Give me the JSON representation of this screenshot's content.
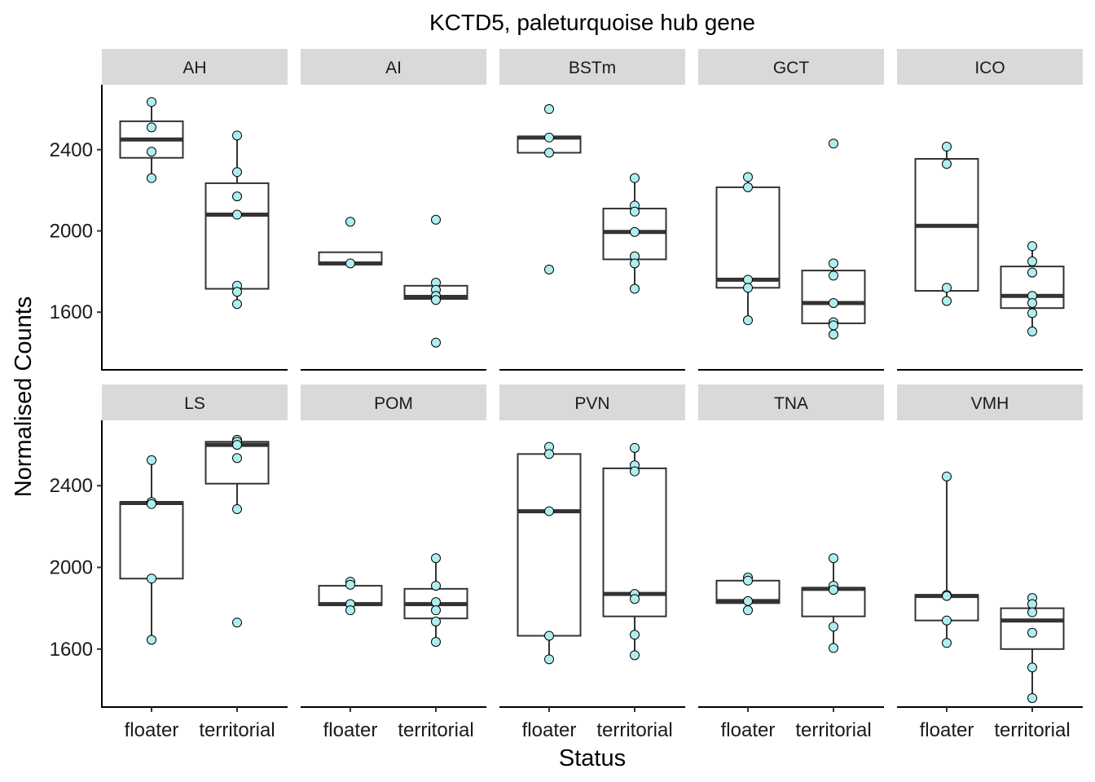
{
  "chart_data": {
    "type": "boxplot",
    "title": "KCTD5, paleturquoise hub gene",
    "xlabel": "Status",
    "ylabel": "Normalised Counts",
    "categories": [
      "floater",
      "territorial"
    ],
    "y_ticks": [
      1600,
      2000,
      2400
    ],
    "ylim": [
      1320,
      2720
    ],
    "point_color": "#AFEEEE",
    "facets": [
      {
        "label": "AH",
        "groups": [
          {
            "box": {
              "q1": 2360,
              "median": 2450,
              "q3": 2540
            },
            "whisker": [
              2260,
              2635
            ],
            "points": [
              2635,
              2510,
              2390,
              2260
            ]
          },
          {
            "box": {
              "q1": 1715,
              "median": 2080,
              "q3": 2235
            },
            "whisker": [
              1640,
              2470
            ],
            "points": [
              2470,
              2290,
              2170,
              2080,
              1730,
              1700,
              1640
            ]
          }
        ]
      },
      {
        "label": "AI",
        "groups": [
          {
            "box": {
              "q1": 1835,
              "median": 1840,
              "q3": 1895
            },
            "whisker": null,
            "points": [
              2045,
              1840
            ]
          },
          {
            "box": {
              "q1": 1665,
              "median": 1675,
              "q3": 1730
            },
            "whisker": null,
            "points": [
              2055,
              1745,
              1710,
              1680,
              1660,
              1450
            ]
          }
        ]
      },
      {
        "label": "BSTm",
        "groups": [
          {
            "box": {
              "q1": 2385,
              "median": 2460,
              "q3": 2465
            },
            "whisker": null,
            "points": [
              2600,
              2460,
              2385,
              1810
            ]
          },
          {
            "box": {
              "q1": 1860,
              "median": 1995,
              "q3": 2110
            },
            "whisker": [
              1715,
              2260
            ],
            "points": [
              2260,
              2125,
              2095,
              1995,
              1875,
              1840,
              1715
            ]
          }
        ]
      },
      {
        "label": "GCT",
        "groups": [
          {
            "box": {
              "q1": 1720,
              "median": 1760,
              "q3": 2215
            },
            "whisker": [
              1560,
              2265
            ],
            "points": [
              2265,
              2215,
              1760,
              1720,
              1560
            ]
          },
          {
            "box": {
              "q1": 1545,
              "median": 1645,
              "q3": 1805
            },
            "whisker": [
              1490,
              1840
            ],
            "points": [
              2430,
              1840,
              1780,
              1645,
              1550,
              1535,
              1490
            ]
          }
        ]
      },
      {
        "label": "ICO",
        "groups": [
          {
            "box": {
              "q1": 1705,
              "median": 2025,
              "q3": 2355
            },
            "whisker": [
              1655,
              2415
            ],
            "points": [
              2415,
              2330,
              1720,
              1655
            ]
          },
          {
            "box": {
              "q1": 1620,
              "median": 1680,
              "q3": 1825
            },
            "whisker": [
              1505,
              1925
            ],
            "points": [
              1925,
              1850,
              1795,
              1680,
              1645,
              1595,
              1505
            ]
          }
        ]
      },
      {
        "label": "LS",
        "groups": [
          {
            "box": {
              "q1": 1945,
              "median": 2315,
              "q3": 2320
            },
            "whisker": [
              1645,
              2525
            ],
            "points": [
              2525,
              2320,
              2310,
              1945,
              1645
            ]
          },
          {
            "box": {
              "q1": 2410,
              "median": 2600,
              "q3": 2615
            },
            "whisker": [
              2285,
              2625
            ],
            "points": [
              2625,
              2615,
              2600,
              2535,
              2285,
              1730
            ]
          }
        ]
      },
      {
        "label": "POM",
        "groups": [
          {
            "box": {
              "q1": 1815,
              "median": 1820,
              "q3": 1910
            },
            "whisker": [
              1790,
              1930
            ],
            "points": [
              1930,
              1915,
              1820,
              1790
            ]
          },
          {
            "box": {
              "q1": 1750,
              "median": 1820,
              "q3": 1895
            },
            "whisker": [
              1635,
              2045
            ],
            "points": [
              2045,
              1910,
              1830,
              1790,
              1735,
              1635
            ]
          }
        ]
      },
      {
        "label": "PVN",
        "groups": [
          {
            "box": {
              "q1": 1665,
              "median": 2275,
              "q3": 2555
            },
            "whisker": [
              1550,
              2590
            ],
            "points": [
              2590,
              2555,
              2275,
              1665,
              1550
            ]
          },
          {
            "box": {
              "q1": 1760,
              "median": 1870,
              "q3": 2485
            },
            "whisker": [
              1570,
              2585
            ],
            "points": [
              2585,
              2500,
              2470,
              1870,
              1845,
              1670,
              1570
            ]
          }
        ]
      },
      {
        "label": "TNA",
        "groups": [
          {
            "box": {
              "q1": 1825,
              "median": 1835,
              "q3": 1935
            },
            "whisker": [
              1790,
              1950
            ],
            "points": [
              1950,
              1935,
              1835,
              1790
            ]
          },
          {
            "box": {
              "q1": 1760,
              "median": 1895,
              "q3": 1900
            },
            "whisker": [
              1605,
              2045
            ],
            "points": [
              2045,
              1910,
              1890,
              1710,
              1605
            ]
          }
        ]
      },
      {
        "label": "VMH",
        "groups": [
          {
            "box": {
              "q1": 1740,
              "median": 1860,
              "q3": 1865
            },
            "whisker": [
              1630,
              2445
            ],
            "points": [
              2445,
              1865,
              1860,
              1740,
              1630
            ]
          },
          {
            "box": {
              "q1": 1600,
              "median": 1740,
              "q3": 1800
            },
            "whisker": [
              1360,
              1850
            ],
            "points": [
              1850,
              1820,
              1780,
              1680,
              1510,
              1360
            ]
          }
        ]
      }
    ]
  }
}
